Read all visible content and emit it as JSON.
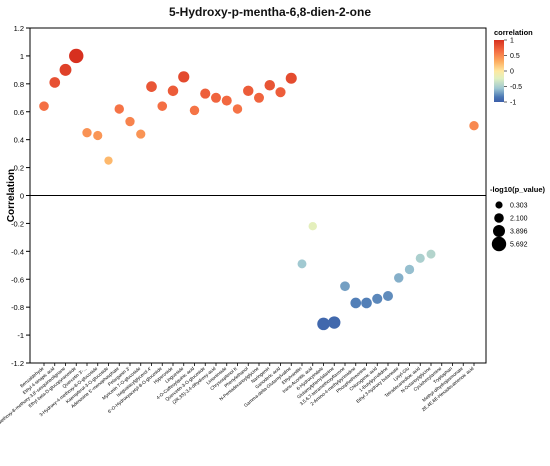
{
  "chart_data": {
    "type": "scatter",
    "title": "5-Hydroxy-p-mentha-6,8-dien-2-one",
    "ylabel": "Correlation",
    "xlabel": "",
    "ylim": [
      -1.2,
      1.2
    ],
    "yticks": [
      "1.2",
      "1",
      "0.8",
      "0.6",
      "0.4",
      "0.2",
      "0",
      "-0.2",
      "-0.4",
      "-0.6",
      "-0.8",
      "-1",
      "-1.2"
    ],
    "grid": false,
    "zero_line": true,
    "legend_color": {
      "title": "correlation",
      "position": "top-right",
      "ticks": [
        "1",
        "0.5",
        "0",
        "-0.5",
        "-1"
      ],
      "colors": [
        "#d7301f",
        "#f46d43",
        "#fdae61",
        "#fee8a0",
        "#e0f0c0",
        "#9ec7d2",
        "#4a77b4",
        "#3b5ea8"
      ]
    },
    "legend_size": {
      "title": "-log10(p_value)",
      "position": "right",
      "labels": [
        "0.303",
        "2.100",
        "3.896",
        "5.692"
      ],
      "values": [
        0.303,
        2.1,
        3.896,
        5.692
      ]
    },
    "categories": [
      "Benzaldehyde",
      "Ethyl 4-sinapic acid",
      "(7R,8R)-4,7-diethoxy-8-methoxy-3,8'-sesquineolignane",
      "Ethyl beta-D-glucopyranoside",
      "Quercetin 3'-...",
      "3-Hydroxy-4-methoxy-8-O-glucoside",
      "Kaempferol-3-O-glucoside",
      "Adenosine 5'-monophosphate",
      "Pelargonin 3'",
      "Myricetin 7-O-glucoside",
      "Isoguaiacylglycerol 4'",
      "6'-O-Hydroxyacetyl-8-O-glucoside",
      "Hyperoside",
      "Lingueside",
      "4-O-Caffeoylquinic acid",
      "Quercetin-3-O-glucoside",
      "(2R,3S)-3,4-dihydroxy-acid",
      "Limoninside",
      "Chrysosplenol K",
      "Phenylethanol",
      "N-Pentadecanoylglycine",
      "Naringenin",
      "Ganoderic acid",
      "Gamma-delta-Glutamylvaline",
      "Ethylvanillin",
      "trans-Aconitic acid",
      "6-Hydroxyindole",
      "Glutamylphenylalanine",
      "3,5,6,7-tetramethoxyflavone",
      "2-Amino-4-methylpyrimidine",
      "Phosphothreonine",
      "Chlorogenic acid",
      "1-Butylpyrrolidine",
      "Ethyl 3-hydroxy butanoate",
      "Lysyl-Glu",
      "Tetradecanedioic acid",
      "N-Octanoylglycine",
      "Cyclohexylamine",
      "Tryptophan",
      "Methyl-dihydrojasmonate",
      "2E,4E,6E-Hexadecatrienoic acid"
    ],
    "series": [
      {
        "points": [
          {
            "label": "Benzaldehyde",
            "x": 1,
            "y": 0.64,
            "p": 2.1
          },
          {
            "label": "Ethyl 4-sinapic acid",
            "x": 2,
            "y": 0.81,
            "p": 2.9
          },
          {
            "label": "(7R,8R)-4,7-diethoxy-8-methoxy-3,8'-sesquineolignane",
            "x": 3,
            "y": 0.9,
            "p": 3.8
          },
          {
            "label": "Ethyl beta-D-glucopyranoside",
            "x": 4,
            "y": 1.0,
            "p": 5.69
          },
          {
            "label": "Quercetin 3'-...",
            "x": 5,
            "y": 0.45,
            "p": 1.9
          },
          {
            "label": "3-Hydroxy-4-methoxy-8-O-glucoside",
            "x": 6,
            "y": 0.43,
            "p": 1.8
          },
          {
            "label": "Kaempferol-3-O-glucoside",
            "x": 7,
            "y": 0.25,
            "p": 1.1
          },
          {
            "label": "Adenosine 5'-monophosphate",
            "x": 8,
            "y": 0.62,
            "p": 2.0
          },
          {
            "label": "Pelargonin 3'",
            "x": 9,
            "y": 0.53,
            "p": 1.9
          },
          {
            "label": "Myricetin 7-O-glucoside",
            "x": 10,
            "y": 0.44,
            "p": 1.8
          },
          {
            "label": "Isoguaiacylglycerol 4'",
            "x": 11,
            "y": 0.78,
            "p": 2.9
          },
          {
            "label": "6'-O-Hydroxyacetyl-8-O-glucoside",
            "x": 12,
            "y": 0.64,
            "p": 2.1
          },
          {
            "label": "Hyperoside",
            "x": 13,
            "y": 0.75,
            "p": 2.8
          },
          {
            "label": "Lingueside",
            "x": 14,
            "y": 0.85,
            "p": 3.3
          },
          {
            "label": "4-O-Caffeoylquinic acid",
            "x": 15,
            "y": 0.61,
            "p": 2.0
          },
          {
            "label": "Quercetin-3-O-glucoside",
            "x": 16,
            "y": 0.73,
            "p": 2.5
          },
          {
            "label": "(2R,3S)-3,4-dihydroxy-acid",
            "x": 17,
            "y": 0.7,
            "p": 2.4
          },
          {
            "label": "Limoninside",
            "x": 18,
            "y": 0.68,
            "p": 2.4
          },
          {
            "label": "Chrysosplenol K",
            "x": 19,
            "y": 0.62,
            "p": 2.0
          },
          {
            "label": "Phenylethanol",
            "x": 20,
            "y": 0.75,
            "p": 2.7
          },
          {
            "label": "N-Pentadecanoylglycine",
            "x": 21,
            "y": 0.7,
            "p": 2.4
          },
          {
            "label": "Naringenin",
            "x": 22,
            "y": 0.79,
            "p": 2.8
          },
          {
            "label": "Ganoderic acid",
            "x": 23,
            "y": 0.74,
            "p": 2.5
          },
          {
            "label": "Gamma-delta-Glutamylvaline",
            "x": 24,
            "y": 0.84,
            "p": 3.2
          },
          {
            "label": "Ethylvanillin",
            "x": 25,
            "y": -0.49,
            "p": 1.6
          },
          {
            "label": "trans-Aconitic acid",
            "x": 26,
            "y": -0.22,
            "p": 1.2
          },
          {
            "label": "6-Hydroxyindole",
            "x": 27,
            "y": -0.92,
            "p": 4.3
          },
          {
            "label": "Glutamylphenylalanine",
            "x": 28,
            "y": -0.91,
            "p": 4.2
          },
          {
            "label": "3,5,6,7-tetramethoxyflavone",
            "x": 29,
            "y": -0.65,
            "p": 2.2
          },
          {
            "label": "2-Amino-4-methylpyrimidine",
            "x": 30,
            "y": -0.77,
            "p": 2.9
          },
          {
            "label": "Phosphothreonine",
            "x": 31,
            "y": -0.77,
            "p": 2.9
          },
          {
            "label": "Chlorogenic acid",
            "x": 32,
            "y": -0.74,
            "p": 2.5
          },
          {
            "label": "1-Butylpyrrolidine",
            "x": 33,
            "y": -0.72,
            "p": 2.4
          },
          {
            "label": "Ethyl 3-hydroxy butanoate",
            "x": 34,
            "y": -0.59,
            "p": 2.0
          },
          {
            "label": "Lysyl-Glu",
            "x": 35,
            "y": -0.53,
            "p": 1.9
          },
          {
            "label": "Tetradecanedioic acid",
            "x": 36,
            "y": -0.45,
            "p": 1.7
          },
          {
            "label": "N-Octanoylglycine",
            "x": 37,
            "y": -0.42,
            "p": 1.6
          },
          {
            "label": "Cyclohexylamine",
            "x": 38,
            "y": null,
            "p": null
          },
          {
            "label": "Tryptophan",
            "x": 39,
            "y": null,
            "p": null
          },
          {
            "label": "Methyl-dihydrojasmonate",
            "x": 40,
            "y": null,
            "p": null
          },
          {
            "label": "2E,4E,6E-Hexadecatrienoic acid",
            "x": 41,
            "y": 0.5,
            "p": 1.9
          }
        ]
      }
    ]
  }
}
